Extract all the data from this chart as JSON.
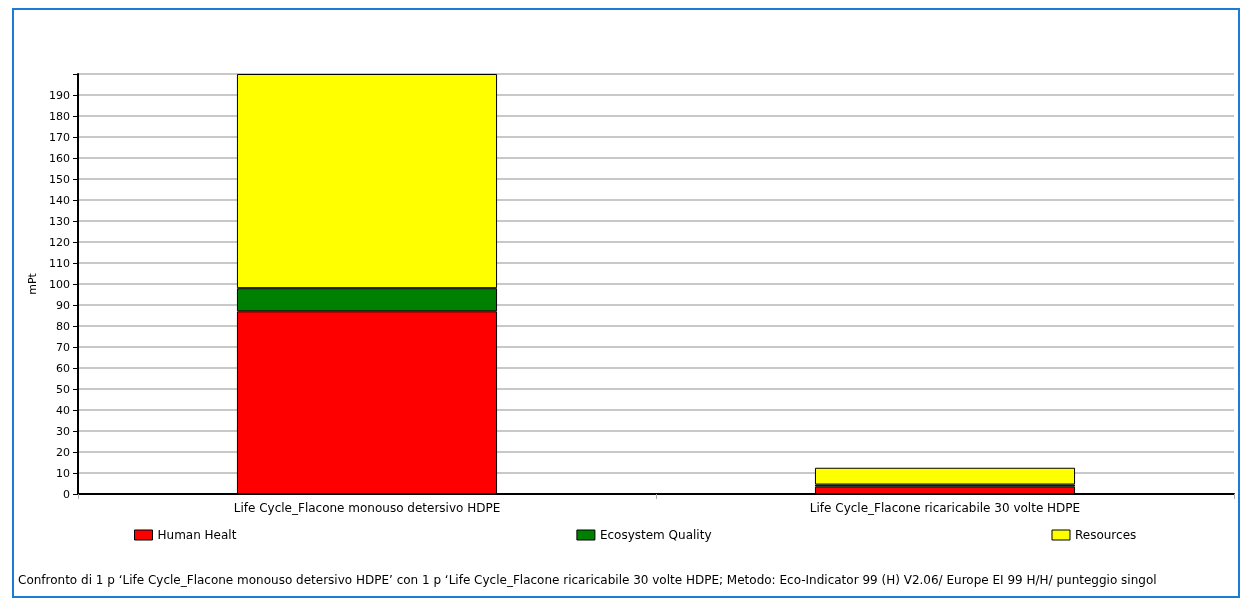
{
  "chart_data": {
    "type": "bar",
    "stacked": true,
    "ylabel": "mPt",
    "categories": [
      "Life Cycle_Flacone monouso detersivo HDPE",
      "Life Cycle_Flacone ricaricabile 30 volte HDPE"
    ],
    "series": [
      {
        "name": "Human Healt",
        "color": "#ff0000",
        "values": [
          87,
          3.5
        ]
      },
      {
        "name": "Ecosystem Quality",
        "color": "#008000",
        "values": [
          11,
          1
        ]
      },
      {
        "name": "Resources",
        "color": "#ffff00",
        "values": [
          102,
          8
        ]
      }
    ],
    "ylim": [
      0,
      200
    ],
    "yticks": [
      0,
      10,
      20,
      30,
      40,
      50,
      60,
      70,
      80,
      90,
      100,
      110,
      120,
      130,
      140,
      150,
      160,
      170,
      180,
      190,
      {
        "value": 200,
        "label": null
      }
    ],
    "grid": "y",
    "legend": "bottom",
    "annotations": [
      "Confronto di 1 p ‘Life Cycle_Flacone monouso detersivo HDPE’ con 1 p ‘Life Cycle_Flacone ricaricabile 30 volte HDPE; Metodo: Eco-Indicator 99 (H) V2.06/ Europe EI 99 H/H/ punteggio singol"
    ]
  }
}
